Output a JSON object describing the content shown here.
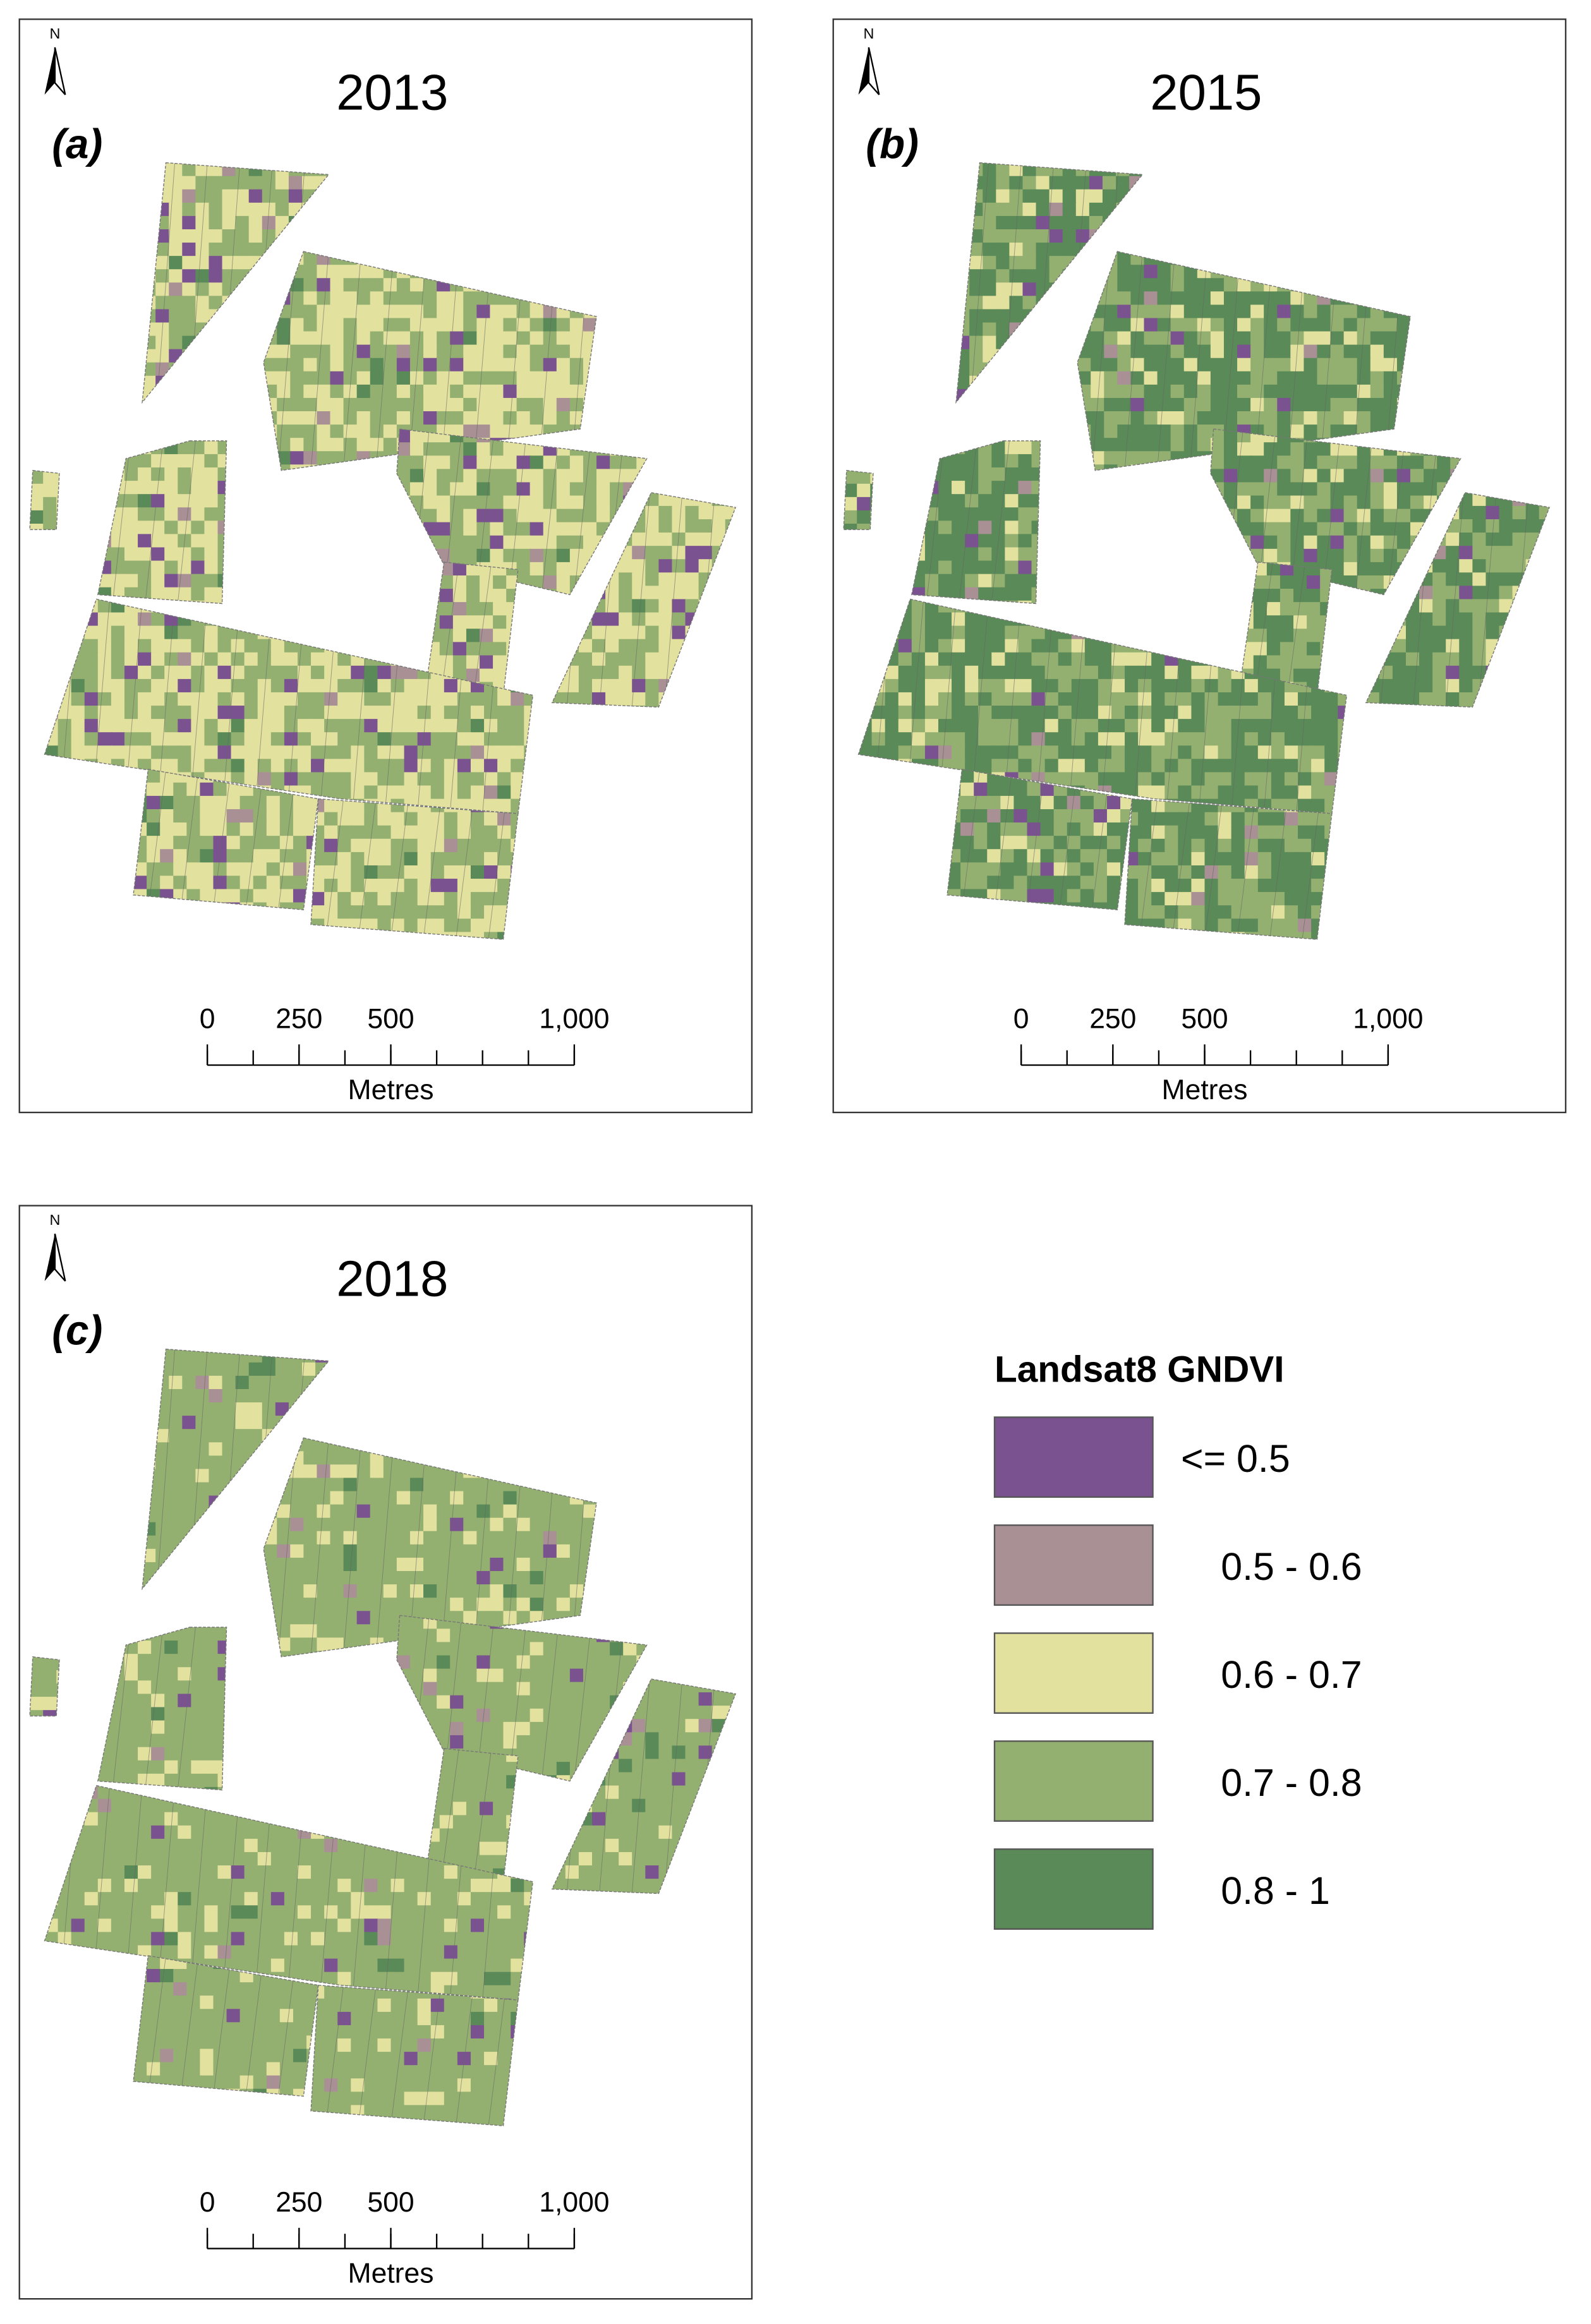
{
  "panels": [
    {
      "title": "2013",
      "label": "(a)"
    },
    {
      "title": "2015",
      "label": "(b)"
    },
    {
      "title": "2018",
      "label": "(c)"
    }
  ],
  "north": "N",
  "scale_bar": {
    "ticks": [
      0,
      250,
      500,
      {
        "value": 1000,
        "label": "1,000"
      }
    ],
    "unit": "Metres"
  },
  "legend": {
    "title": "Landsat8 GNDVI",
    "items": [
      {
        "label": "<= 0.5",
        "color": "#7b5290"
      },
      {
        "label": "0.5 - 0.6",
        "color": "#a89094"
      },
      {
        "label": "0.6 - 0.7",
        "color": "#e3e19e"
      },
      {
        "label": "0.7 - 0.8",
        "color": "#94b071"
      },
      {
        "label": "0.8 - 1",
        "color": "#5a8a58"
      }
    ]
  }
}
